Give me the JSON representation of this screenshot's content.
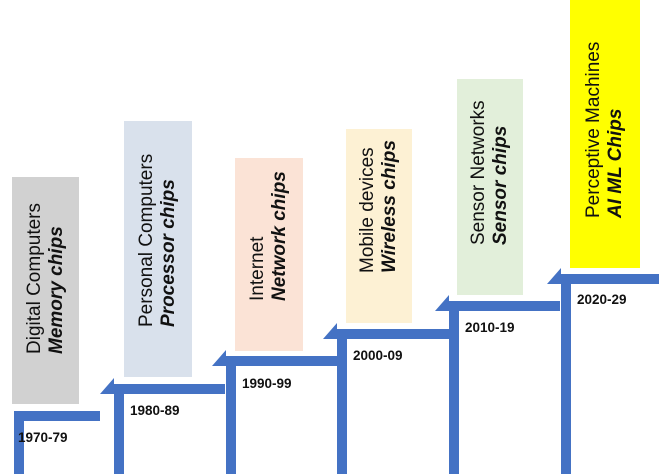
{
  "steps": [
    {
      "title": "Digital Computers",
      "chip": "Memory chips",
      "period": "1970-79",
      "color": "#d1d1d1"
    },
    {
      "title": "Personal Computers",
      "chip": "Processor chips",
      "period": "1980-89",
      "color": "#d9e1ec"
    },
    {
      "title": "Internet",
      "chip": "Network chips",
      "period": "1990-99",
      "color": "#fbe3d6"
    },
    {
      "title": "Mobile devices",
      "chip": "Wireless chips",
      "period": "2000-09",
      "color": "#fdf1d4"
    },
    {
      "title": "Sensor Networks",
      "chip": "Sensor chips",
      "period": "2010-19",
      "color": "#e2efda"
    },
    {
      "title": "Perceptive Machines",
      "chip": "AI ML Chips",
      "period": "2020-29",
      "color": "#ffff00"
    }
  ],
  "stair_color": "#4472c4"
}
